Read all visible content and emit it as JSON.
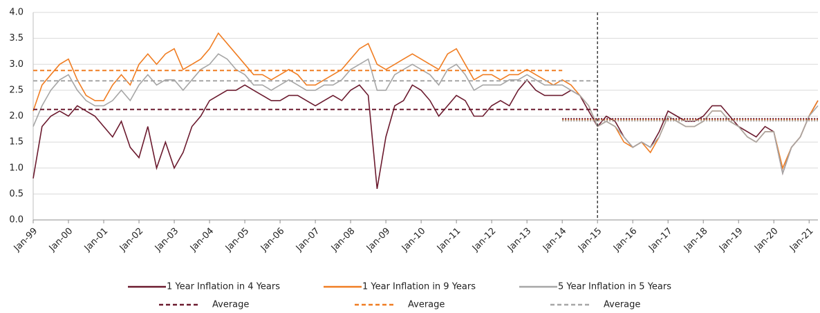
{
  "chart_data": {
    "type": "line",
    "x": [
      1999,
      1999.25,
      1999.5,
      1999.75,
      2000,
      2000.25,
      2000.5,
      2000.75,
      2001,
      2001.25,
      2001.5,
      2001.75,
      2002,
      2002.25,
      2002.5,
      2002.75,
      2003,
      2003.25,
      2003.5,
      2003.75,
      2004,
      2004.25,
      2004.5,
      2004.75,
      2005,
      2005.25,
      2005.5,
      2005.75,
      2006,
      2006.25,
      2006.5,
      2006.75,
      2007,
      2007.25,
      2007.5,
      2007.75,
      2008,
      2008.25,
      2008.5,
      2008.75,
      2009,
      2009.25,
      2009.5,
      2009.75,
      2010,
      2010.25,
      2010.5,
      2010.75,
      2011,
      2011.25,
      2011.5,
      2011.75,
      2012,
      2012.25,
      2012.5,
      2012.75,
      2013,
      2013.25,
      2013.5,
      2013.75,
      2014,
      2014.25,
      2014.5,
      2014.75,
      2015,
      2015.25,
      2015.5,
      2015.75,
      2016,
      2016.25,
      2016.5,
      2016.75,
      2017,
      2017.25,
      2017.5,
      2017.75,
      2018,
      2018.25,
      2018.5,
      2018.75,
      2019,
      2019.25,
      2019.5,
      2019.75,
      2020,
      2020.25,
      2020.5,
      2020.75,
      2021,
      2021.25
    ],
    "series": [
      {
        "name": "1 Year Inflation in 4 Years",
        "color": "#6b1a2e",
        "values": [
          0.8,
          1.8,
          2.0,
          2.1,
          2.0,
          2.2,
          2.1,
          2.0,
          1.8,
          1.6,
          1.9,
          1.4,
          1.2,
          1.8,
          1.0,
          1.5,
          1.0,
          1.3,
          1.8,
          2.0,
          2.3,
          2.4,
          2.5,
          2.5,
          2.6,
          2.5,
          2.4,
          2.3,
          2.3,
          2.4,
          2.4,
          2.3,
          2.2,
          2.3,
          2.4,
          2.3,
          2.5,
          2.6,
          2.4,
          0.6,
          1.6,
          2.2,
          2.3,
          2.6,
          2.5,
          2.3,
          2.0,
          2.2,
          2.4,
          2.3,
          2.0,
          2.0,
          2.2,
          2.3,
          2.2,
          2.5,
          2.7,
          2.5,
          2.4,
          2.4,
          2.4,
          2.5,
          2.4,
          2.1,
          1.8,
          2.0,
          1.9,
          1.6,
          1.4,
          1.5,
          1.4,
          1.7,
          2.1,
          2.0,
          1.9,
          1.9,
          2.0,
          2.2,
          2.2,
          2.0,
          1.8,
          1.7,
          1.6,
          1.8,
          1.7,
          0.9,
          1.4,
          1.6,
          2.0,
          2.3
        ]
      },
      {
        "name": "1 Year Inflation in 9 Years",
        "color": "#f07d22",
        "values": [
          2.1,
          2.6,
          2.8,
          3.0,
          3.1,
          2.7,
          2.4,
          2.3,
          2.3,
          2.6,
          2.8,
          2.6,
          3.0,
          3.2,
          3.0,
          3.2,
          3.3,
          2.9,
          3.0,
          3.1,
          3.3,
          3.6,
          3.4,
          3.2,
          3.0,
          2.8,
          2.8,
          2.7,
          2.8,
          2.9,
          2.8,
          2.6,
          2.6,
          2.7,
          2.8,
          2.9,
          3.1,
          3.3,
          3.4,
          3.0,
          2.9,
          3.0,
          3.1,
          3.2,
          3.1,
          3.0,
          2.9,
          3.2,
          3.3,
          3.0,
          2.7,
          2.8,
          2.8,
          2.7,
          2.8,
          2.8,
          2.9,
          2.8,
          2.7,
          2.6,
          2.7,
          2.6,
          2.4,
          2.2,
          1.8,
          1.9,
          1.8,
          1.5,
          1.4,
          1.5,
          1.3,
          1.6,
          2.0,
          1.9,
          1.8,
          1.8,
          1.9,
          2.1,
          2.1,
          1.9,
          1.8,
          1.6,
          1.5,
          1.7,
          1.7,
          1.0,
          1.4,
          1.6,
          2.0,
          2.3
        ]
      },
      {
        "name": "5 Year Inflation in 5 Years",
        "color": "#a6a6a6",
        "values": [
          1.8,
          2.2,
          2.5,
          2.7,
          2.8,
          2.5,
          2.3,
          2.2,
          2.2,
          2.3,
          2.5,
          2.3,
          2.6,
          2.8,
          2.6,
          2.7,
          2.7,
          2.5,
          2.7,
          2.9,
          3.0,
          3.2,
          3.1,
          2.9,
          2.8,
          2.6,
          2.6,
          2.5,
          2.6,
          2.7,
          2.6,
          2.5,
          2.5,
          2.6,
          2.6,
          2.7,
          2.9,
          3.0,
          3.1,
          2.5,
          2.5,
          2.8,
          2.9,
          3.0,
          2.9,
          2.8,
          2.6,
          2.9,
          3.0,
          2.8,
          2.5,
          2.6,
          2.6,
          2.6,
          2.7,
          2.7,
          2.8,
          2.7,
          2.6,
          2.6,
          2.6,
          2.5,
          2.4,
          2.2,
          1.8,
          1.9,
          1.8,
          1.6,
          1.4,
          1.5,
          1.4,
          1.6,
          2.0,
          1.9,
          1.8,
          1.8,
          1.9,
          2.1,
          2.1,
          1.9,
          1.8,
          1.6,
          1.5,
          1.7,
          1.7,
          0.9,
          1.4,
          1.6,
          2.0,
          2.2
        ]
      },
      {
        "name": "Average",
        "color": "#6b1a2e",
        "dash": "dashed",
        "x": [
          1999,
          2015
        ],
        "values": [
          2.13,
          2.13
        ]
      },
      {
        "name": "Average",
        "color": "#f07d22",
        "dash": "dashed",
        "x": [
          1999,
          2014
        ],
        "values": [
          2.88,
          2.88
        ]
      },
      {
        "name": "Average",
        "color": "#a6a6a6",
        "dash": "dashed",
        "x": [
          1999,
          2015
        ],
        "values": [
          2.68,
          2.68
        ]
      },
      {
        "color": "#f07d22",
        "dash": "dotted",
        "x": [
          2014,
          2021.25
        ],
        "values": [
          1.93,
          1.93
        ]
      },
      {
        "color": "#a6a6a6",
        "dash": "dotted",
        "x": [
          2014,
          2021.25
        ],
        "values": [
          1.91,
          1.91
        ]
      },
      {
        "color": "#6b1a2e",
        "dash": "dotted",
        "x": [
          2014,
          2021.25
        ],
        "values": [
          1.95,
          1.95
        ]
      }
    ],
    "xlim": [
      1999,
      2021.25
    ],
    "xticks": [
      {
        "value": 1999,
        "label": "Jan-99"
      },
      {
        "value": 2000,
        "label": "Jan-00"
      },
      {
        "value": 2001,
        "label": "Jan-01"
      },
      {
        "value": 2002,
        "label": "Jan-02"
      },
      {
        "value": 2003,
        "label": "Jan-03"
      },
      {
        "value": 2004,
        "label": "Jan-04"
      },
      {
        "value": 2005,
        "label": "Jan-05"
      },
      {
        "value": 2006,
        "label": "Jan-06"
      },
      {
        "value": 2007,
        "label": "Jan-07"
      },
      {
        "value": 2008,
        "label": "Jan-08"
      },
      {
        "value": 2009,
        "label": "Jan-09"
      },
      {
        "value": 2010,
        "label": "Jan-10"
      },
      {
        "value": 2011,
        "label": "Jan-11"
      },
      {
        "value": 2012,
        "label": "Jan-12"
      },
      {
        "value": 2013,
        "label": "Jan-13"
      },
      {
        "value": 2014,
        "label": "Jan-14"
      },
      {
        "value": 2015,
        "label": "Jan-15"
      },
      {
        "value": 2016,
        "label": "Jan-16"
      },
      {
        "value": 2017,
        "label": "Jan-17"
      },
      {
        "value": 2018,
        "label": "Jan-18"
      },
      {
        "value": 2019,
        "label": "Jan-19"
      },
      {
        "value": 2020,
        "label": "Jan-20"
      },
      {
        "value": 2021,
        "label": "Jan-21"
      }
    ],
    "ylim": [
      0,
      4
    ],
    "yticks": [
      {
        "value": 0,
        "label": "0.0"
      },
      {
        "value": 0.5,
        "label": "0.5"
      },
      {
        "value": 1,
        "label": "1.0"
      },
      {
        "value": 1.5,
        "label": "1.5"
      },
      {
        "value": 2,
        "label": "2.0"
      },
      {
        "value": 2.5,
        "label": "2.5"
      },
      {
        "value": 3,
        "label": "3.0"
      },
      {
        "value": 3.5,
        "label": "3.5"
      },
      {
        "value": 4,
        "label": "4.0"
      }
    ],
    "vlines": [
      2015
    ],
    "grid": true,
    "legend": "bottom"
  }
}
